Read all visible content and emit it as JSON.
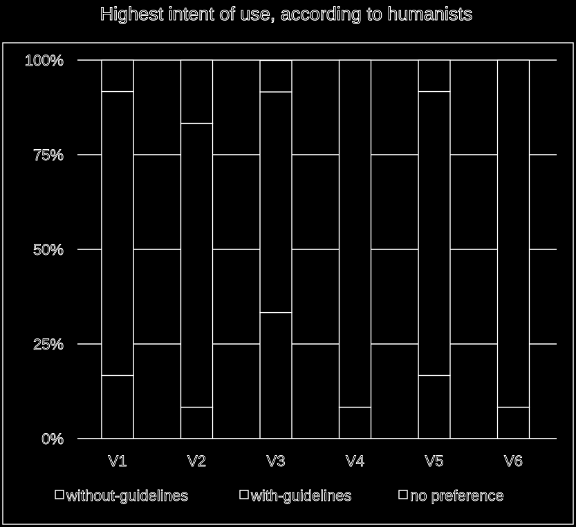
{
  "chart_data": {
    "type": "bar",
    "stacked": true,
    "normalized": true,
    "title": "Highest intent of use, according to humanists",
    "categories": [
      "V1",
      "V2",
      "V3",
      "V4",
      "V5",
      "V6"
    ],
    "series": [
      {
        "name": "without-guidelines",
        "values": [
          16.7,
          8.3,
          33.3,
          8.3,
          16.7,
          8.3
        ],
        "color": "#000000"
      },
      {
        "name": "with-guidelines",
        "values": [
          75.0,
          75.0,
          58.3,
          91.7,
          75.0,
          91.7
        ],
        "color": "#000000"
      },
      {
        "name": "no preference",
        "values": [
          8.3,
          16.7,
          8.3,
          0,
          8.3,
          0
        ],
        "color": "#000000"
      }
    ],
    "y_ticks": [
      "0%",
      "25%",
      "50%",
      "75%",
      "100%"
    ],
    "ylim": [
      0,
      100
    ],
    "grid": true,
    "legend_position": "bottom"
  },
  "colors": {
    "background": "#000000",
    "lines": "#ffffff"
  }
}
